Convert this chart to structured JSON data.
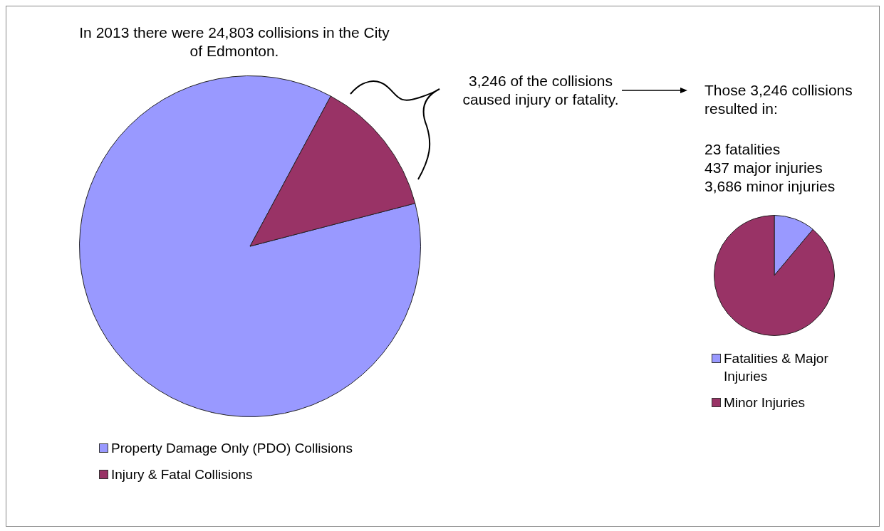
{
  "chart_data": [
    {
      "type": "pie",
      "title": "In 2013 there were 24,803 collisions in the City of Edmonton.",
      "categories": [
        "Property Damage Only (PDO) Collisions",
        "Injury & Fatal Collisions"
      ],
      "values": [
        86.9,
        13.1
      ],
      "colors": [
        "#9999ff",
        "#993366"
      ],
      "legend": "bottom",
      "annotations": [
        "3,246 of the collisions caused injury or fatality."
      ]
    },
    {
      "type": "pie",
      "title": "Those 3,246 collisions resulted in:",
      "categories": [
        "Fatalities & Major Injuries",
        "Minor Injuries"
      ],
      "values": [
        11.1,
        88.9
      ],
      "colors": [
        "#9999ff",
        "#993366"
      ],
      "legend": "bottom",
      "annotations": [
        "23 fatalities",
        "437 major injuries",
        "3,686 minor injuries"
      ]
    }
  ]
}
